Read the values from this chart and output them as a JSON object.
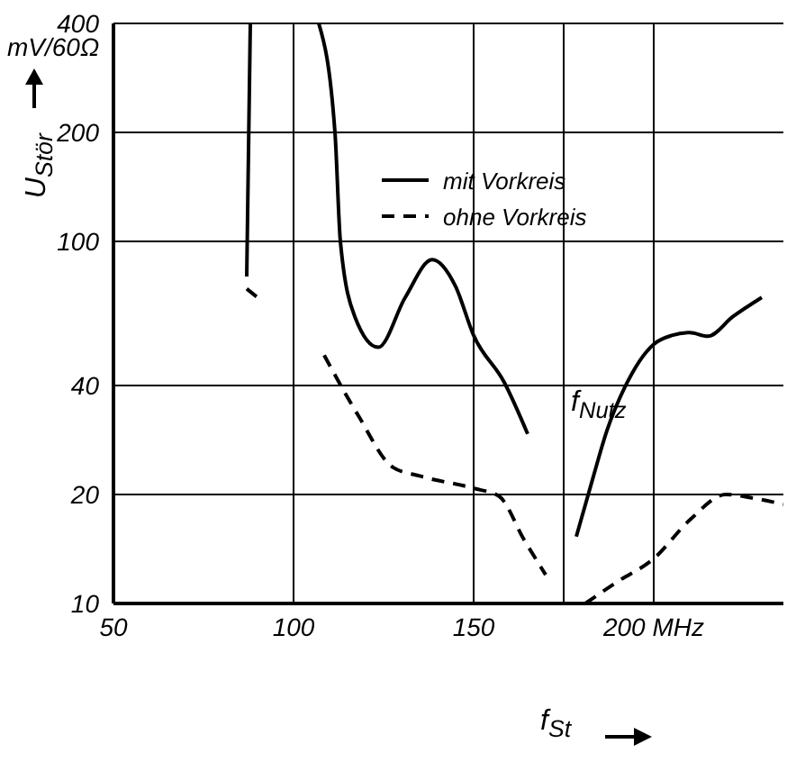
{
  "chart_data": {
    "type": "line",
    "xlabel": "f$_{St}$",
    "ylabel": "U$_{Stör}$",
    "annotations": [
      "mV/60Ω"
    ],
    "xlim": [
      50,
      236
    ],
    "xticks": [
      50,
      100,
      150,
      {
        "value": 200,
        "label": "200 MHz"
      }
    ],
    "ylim": [
      10,
      400
    ],
    "yticks": [
      10,
      20,
      40,
      100,
      200,
      400
    ],
    "log": "y",
    "grid": true,
    "legend": "top",
    "ref_lines": [
      {
        "axis": "x",
        "value": 175,
        "label": "f$_{Nutz}$"
      }
    ],
    "series": [
      {
        "name": "mit Vorkreis",
        "color": "#000000",
        "line_style": "solid",
        "x": [
          88,
          87,
          98,
          107,
          111.5,
          113,
          117,
          123.5,
          131,
          138.5,
          145,
          150,
          158.5,
          165,
          172,
          178.5,
          183,
          187,
          192,
          200,
          205,
          210,
          215,
          222,
          230
        ],
        "values": [
          400,
          80,
          null,
          400,
          200,
          100,
          62,
          51,
          70,
          89,
          75,
          55,
          40.8,
          29.4,
          null,
          15.3,
          22,
          30,
          39.6,
          52,
          55,
          56,
          54.7,
          62,
          70
        ]
      },
      {
        "name": "ohne Vorkreis",
        "color": "#000000",
        "line_style": "dashed",
        "x": [
          87,
          90,
          99,
          108.5,
          118,
          127.5,
          135,
          150,
          157,
          164,
          170,
          175,
          181,
          190,
          200,
          210,
          220,
          228,
          236
        ],
        "values": [
          74,
          70,
          null,
          48.5,
          33,
          23.8,
          22.5,
          20.8,
          19.8,
          15,
          12,
          null,
          10,
          11.5,
          13.3,
          17,
          20,
          19.5,
          18.8
        ]
      }
    ]
  }
}
